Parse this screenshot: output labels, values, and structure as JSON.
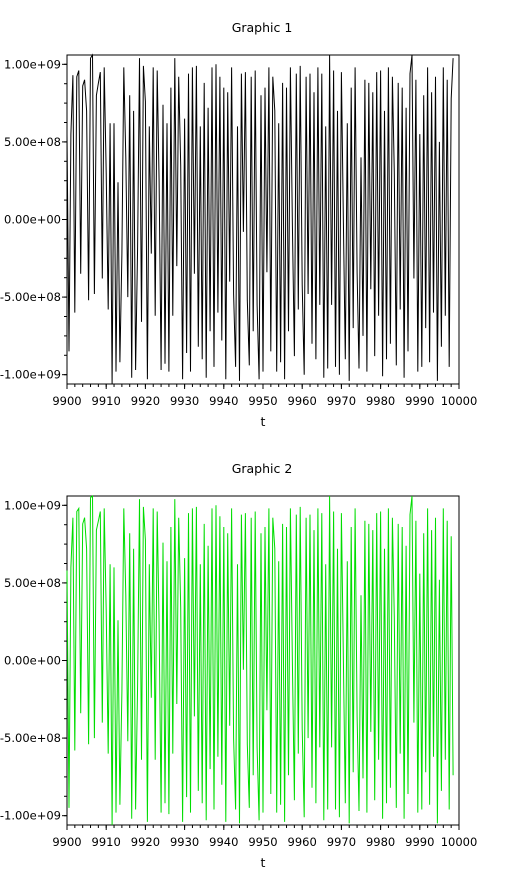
{
  "chart_data": [
    {
      "type": "line",
      "title": "Graphic 1",
      "xlabel": "t",
      "ylabel": "",
      "xlim": [
        9900,
        10000
      ],
      "ylim": [
        -1060000000.0,
        1060000000.0
      ],
      "xticks": [
        9900,
        9910,
        9920,
        9930,
        9940,
        9950,
        9960,
        9970,
        9980,
        9990,
        10000
      ],
      "xtick_labels": [
        "9900",
        "9910",
        "9920",
        "9930",
        "9940",
        "9950",
        "9960",
        "9970",
        "9980",
        "9990",
        "10000"
      ],
      "yticks": [
        1000000000.0,
        500000000.0,
        0,
        -500000000.0,
        -1000000000.0
      ],
      "ytick_labels": [
        "1.00e+09",
        "5.00e+08",
        "0.00e+00",
        "-5.00e+08",
        "-1.00e+09"
      ],
      "grid": false,
      "line_color": "#000000",
      "series": [
        {
          "x_start": 9900,
          "x_step": 0.5,
          "values": [
            550000000.0,
            -850000000.0,
            550000000.0,
            930000000.0,
            -600000000.0,
            920000000.0,
            960000000.0,
            -350000000.0,
            860000000.0,
            900000000.0,
            700000000.0,
            -520000000.0,
            1040000000.0,
            1060000000.0,
            -480000000.0,
            800000000.0,
            880000000.0,
            950000000.0,
            -380000000.0,
            980000000.0,
            300000000.0,
            -580000000.0,
            620000000.0,
            -1060000000.0,
            620000000.0,
            -980000000.0,
            240000000.0,
            -920000000.0,
            -220000000.0,
            980000000.0,
            400000000.0,
            -500000000.0,
            800000000.0,
            -1020000000.0,
            700000000.0,
            -970000000.0,
            -180000000.0,
            1040000000.0,
            -660000000.0,
            990000000.0,
            760000000.0,
            -1030000000.0,
            600000000.0,
            -220000000.0,
            980000000.0,
            -620000000.0,
            960000000.0,
            250000000.0,
            -970000000.0,
            740000000.0,
            -930000000.0,
            620000000.0,
            -980000000.0,
            850000000.0,
            -620000000.0,
            1040000000.0,
            -300000000.0,
            920000000.0,
            350000000.0,
            -1030000000.0,
            650000000.0,
            -860000000.0,
            940000000.0,
            -980000000.0,
            980000000.0,
            -350000000.0,
            990000000.0,
            -820000000.0,
            600000000.0,
            -900000000.0,
            880000000.0,
            -1020000000.0,
            720000000.0,
            -720000000.0,
            980000000.0,
            -950000000.0,
            1000000000.0,
            -600000000.0,
            920000000.0,
            -780000000.0,
            850000000.0,
            -1030000000.0,
            820000000.0,
            -400000000.0,
            980000000.0,
            -480000000.0,
            -950000000.0,
            600000000.0,
            -1040000000.0,
            940000000.0,
            -80000000.0,
            950000000.0,
            -520000000.0,
            -940000000.0,
            920000000.0,
            -720000000.0,
            960000000.0,
            -550000000.0,
            -1030000000.0,
            800000000.0,
            -980000000.0,
            850000000.0,
            -340000000.0,
            980000000.0,
            -850000000.0,
            920000000.0,
            700000000.0,
            -980000000.0,
            620000000.0,
            -920000000.0,
            880000000.0,
            -1030000000.0,
            850000000.0,
            -720000000.0,
            980000000.0,
            -40000000.0,
            -880000000.0,
            940000000.0,
            -580000000.0,
            990000000.0,
            -420000000.0,
            -1000000000.0,
            920000000.0,
            -480000000.0,
            940000000.0,
            -800000000.0,
            820000000.0,
            -900000000.0,
            980000000.0,
            -550000000.0,
            940000000.0,
            -1020000000.0,
            600000000.0,
            -960000000.0,
            1060000000.0,
            -550000000.0,
            960000000.0,
            -950000000.0,
            700000000.0,
            -1000000000.0,
            950000000.0,
            -20000000.0,
            -900000000.0,
            620000000.0,
            -1040000000.0,
            850000000.0,
            -700000000.0,
            980000000.0,
            -340000000.0,
            -960000000.0,
            400000000.0,
            -750000000.0,
            900000000.0,
            -980000000.0,
            880000000.0,
            -450000000.0,
            820000000.0,
            -880000000.0,
            950000000.0,
            -620000000.0,
            960000000.0,
            -1010000000.0,
            700000000.0,
            -900000000.0,
            980000000.0,
            -800000000.0,
            920000000.0,
            300000000.0,
            -940000000.0,
            880000000.0,
            -580000000.0,
            850000000.0,
            -1020000000.0,
            720000000.0,
            -850000000.0,
            940000000.0,
            1060000000.0,
            -380000000.0,
            900000000.0,
            -980000000.0,
            550000000.0,
            -950000000.0,
            800000000.0,
            -700000000.0,
            980000000.0,
            -920000000.0,
            820000000.0,
            -600000000.0,
            920000000.0,
            -1040000000.0,
            500000000.0,
            -820000000.0,
            980000000.0,
            -620000000.0,
            900000000.0,
            -950000000.0,
            780000000.0,
            1040000000.0
          ]
        }
      ]
    },
    {
      "type": "line",
      "title": "Graphic 2",
      "xlabel": "t",
      "ylabel": "",
      "xlim": [
        9900,
        10000
      ],
      "ylim": [
        -1060000000.0,
        1060000000.0
      ],
      "xticks": [
        9900,
        9910,
        9920,
        9930,
        9940,
        9950,
        9960,
        9970,
        9980,
        9990,
        10000
      ],
      "xtick_labels": [
        "9900",
        "9910",
        "9920",
        "9930",
        "9940",
        "9950",
        "9960",
        "9970",
        "9980",
        "9990",
        "10000"
      ],
      "yticks": [
        1000000000.0,
        500000000.0,
        0,
        -500000000.0,
        -1000000000.0
      ],
      "ytick_labels": [
        "1.00e+09",
        "5.00e+08",
        "0.00e+00",
        "-5.00e+08",
        "-1.00e+09"
      ],
      "grid": false,
      "line_color": "#00dd00",
      "series": [
        {
          "x_start": 9900,
          "x_step": 0.5,
          "values": [
            580000000.0,
            -950000000.0,
            600000000.0,
            920000000.0,
            -580000000.0,
            960000000.0,
            980000000.0,
            -340000000.0,
            880000000.0,
            920000000.0,
            720000000.0,
            -540000000.0,
            1050000000.0,
            1060000000.0,
            -500000000.0,
            840000000.0,
            900000000.0,
            960000000.0,
            -400000000.0,
            980000000.0,
            320000000.0,
            -600000000.0,
            620000000.0,
            -1060000000.0,
            600000000.0,
            -980000000.0,
            260000000.0,
            -930000000.0,
            -200000000.0,
            980000000.0,
            420000000.0,
            -520000000.0,
            820000000.0,
            -1020000000.0,
            720000000.0,
            -960000000.0,
            -160000000.0,
            1040000000.0,
            -640000000.0,
            990000000.0,
            780000000.0,
            -1040000000.0,
            620000000.0,
            -240000000.0,
            980000000.0,
            -640000000.0,
            960000000.0,
            240000000.0,
            -980000000.0,
            760000000.0,
            -920000000.0,
            640000000.0,
            -990000000.0,
            860000000.0,
            -600000000.0,
            1040000000.0,
            -280000000.0,
            920000000.0,
            340000000.0,
            -1040000000.0,
            660000000.0,
            -880000000.0,
            950000000.0,
            -980000000.0,
            980000000.0,
            -360000000.0,
            990000000.0,
            -840000000.0,
            620000000.0,
            -920000000.0,
            880000000.0,
            -1030000000.0,
            740000000.0,
            -700000000.0,
            980000000.0,
            -960000000.0,
            1000000000.0,
            -620000000.0,
            930000000.0,
            -800000000.0,
            860000000.0,
            -1040000000.0,
            820000000.0,
            -420000000.0,
            980000000.0,
            -500000000.0,
            -960000000.0,
            620000000.0,
            -1050000000.0,
            940000000.0,
            -60000000.0,
            950000000.0,
            -540000000.0,
            -950000000.0,
            920000000.0,
            -740000000.0,
            960000000.0,
            -560000000.0,
            -1030000000.0,
            820000000.0,
            -980000000.0,
            860000000.0,
            -320000000.0,
            980000000.0,
            -860000000.0,
            920000000.0,
            720000000.0,
            -980000000.0,
            640000000.0,
            -930000000.0,
            880000000.0,
            -1040000000.0,
            860000000.0,
            -740000000.0,
            980000000.0,
            -20000000.0,
            -900000000.0,
            940000000.0,
            -600000000.0,
            990000000.0,
            -440000000.0,
            -1010000000.0,
            920000000.0,
            -500000000.0,
            940000000.0,
            -820000000.0,
            840000000.0,
            -920000000.0,
            980000000.0,
            -560000000.0,
            950000000.0,
            -1030000000.0,
            620000000.0,
            -960000000.0,
            1060000000.0,
            -560000000.0,
            960000000.0,
            -960000000.0,
            720000000.0,
            -1010000000.0,
            950000000.0,
            0.0,
            -920000000.0,
            640000000.0,
            -1050000000.0,
            860000000.0,
            -720000000.0,
            980000000.0,
            -360000000.0,
            -970000000.0,
            420000000.0,
            -760000000.0,
            900000000.0,
            -980000000.0,
            880000000.0,
            -460000000.0,
            840000000.0,
            -900000000.0,
            950000000.0,
            -640000000.0,
            960000000.0,
            -1020000000.0,
            720000000.0,
            -920000000.0,
            980000000.0,
            -820000000.0,
            920000000.0,
            280000000.0,
            -950000000.0,
            880000000.0,
            -600000000.0,
            860000000.0,
            -1020000000.0,
            740000000.0,
            -860000000.0,
            940000000.0,
            1060000000.0,
            -400000000.0,
            900000000.0,
            -980000000.0,
            560000000.0,
            -960000000.0,
            820000000.0,
            -720000000.0,
            980000000.0,
            -930000000.0,
            840000000.0,
            -620000000.0,
            920000000.0,
            -1050000000.0,
            520000000.0,
            -840000000.0,
            980000000.0,
            -640000000.0,
            900000000.0,
            -960000000.0,
            800000000.0,
            -740000000.0
          ]
        }
      ]
    }
  ]
}
